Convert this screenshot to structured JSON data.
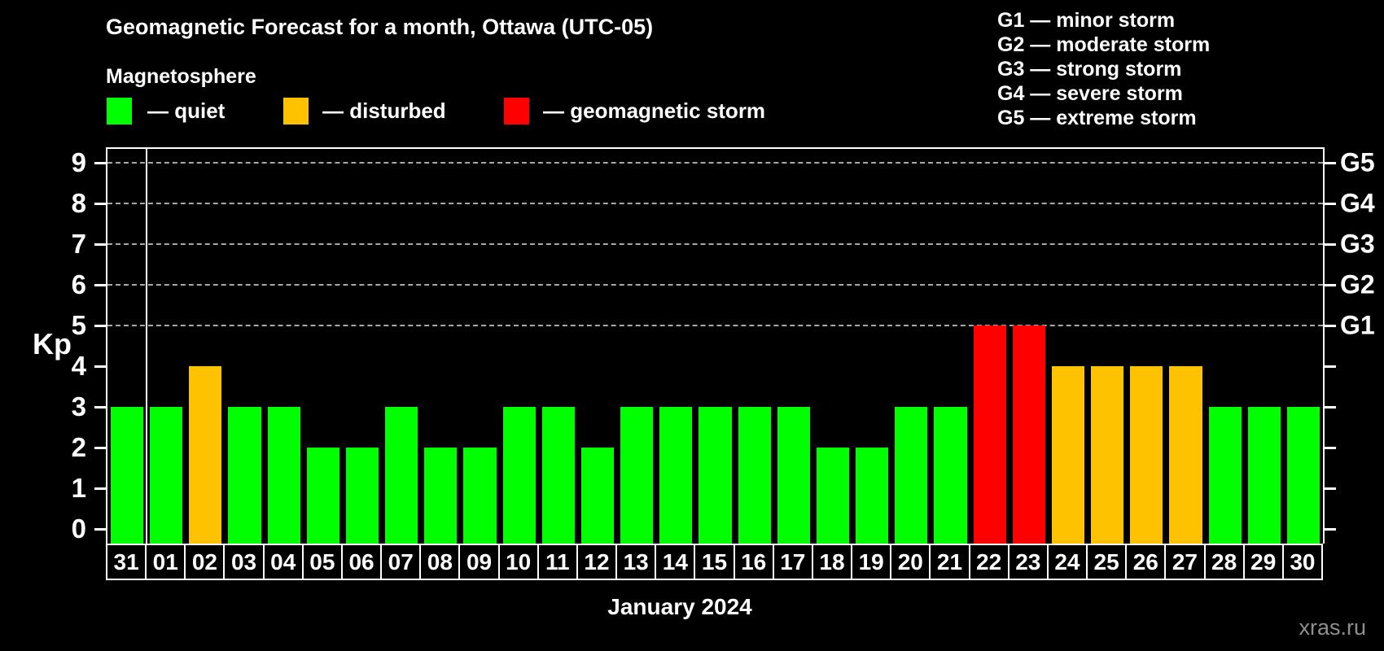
{
  "header": {
    "title": "Geomagnetic Forecast for a month, Ottawa (UTC-05)",
    "subtitle": "Magnetosphere"
  },
  "legend": {
    "items": [
      {
        "status": "quiet",
        "label": "— quiet",
        "color": "#00ff00"
      },
      {
        "status": "disturbed",
        "label": "— disturbed",
        "color": "#ffc200"
      },
      {
        "status": "storm",
        "label": "— geomagnetic storm",
        "color": "#ff0000"
      }
    ]
  },
  "g_legend": {
    "items": [
      "G1 — minor storm",
      "G2 — moderate storm",
      "G3 — strong storm",
      "G4 — severe storm",
      "G5 — extreme storm"
    ]
  },
  "chart_data": {
    "type": "bar",
    "title": "Geomagnetic Forecast for a month, Ottawa (UTC-05)",
    "xlabel": "January 2024",
    "ylabel": "Kp",
    "ylim": [
      0,
      9
    ],
    "y_ticks": [
      0,
      1,
      2,
      3,
      4,
      5,
      6,
      7,
      8,
      9
    ],
    "grid": "dashed horizontal lines at storm levels only",
    "grid_levels": [
      5,
      6,
      7,
      8,
      9
    ],
    "right_axis_labels": [
      "G1",
      "G2",
      "G3",
      "G4",
      "G5"
    ],
    "month_separator_after_index": 0,
    "categories": [
      "31",
      "01",
      "02",
      "03",
      "04",
      "05",
      "06",
      "07",
      "08",
      "09",
      "10",
      "11",
      "12",
      "13",
      "14",
      "15",
      "16",
      "17",
      "18",
      "19",
      "20",
      "21",
      "22",
      "23",
      "24",
      "25",
      "26",
      "27",
      "28",
      "29",
      "30"
    ],
    "values": [
      3,
      3,
      4,
      3,
      3,
      2,
      2,
      3,
      2,
      2,
      3,
      3,
      2,
      3,
      3,
      3,
      3,
      3,
      2,
      2,
      3,
      3,
      5,
      5,
      4,
      4,
      4,
      4,
      3,
      3,
      3
    ],
    "statuses": [
      "quiet",
      "quiet",
      "disturbed",
      "quiet",
      "quiet",
      "quiet",
      "quiet",
      "quiet",
      "quiet",
      "quiet",
      "quiet",
      "quiet",
      "quiet",
      "quiet",
      "quiet",
      "quiet",
      "quiet",
      "quiet",
      "quiet",
      "quiet",
      "quiet",
      "quiet",
      "storm",
      "storm",
      "disturbed",
      "disturbed",
      "disturbed",
      "disturbed",
      "quiet",
      "quiet",
      "quiet"
    ],
    "colors": {
      "quiet": "#00ff00",
      "disturbed": "#ffc200",
      "storm": "#ff0000"
    }
  },
  "watermark": "xras.ru"
}
